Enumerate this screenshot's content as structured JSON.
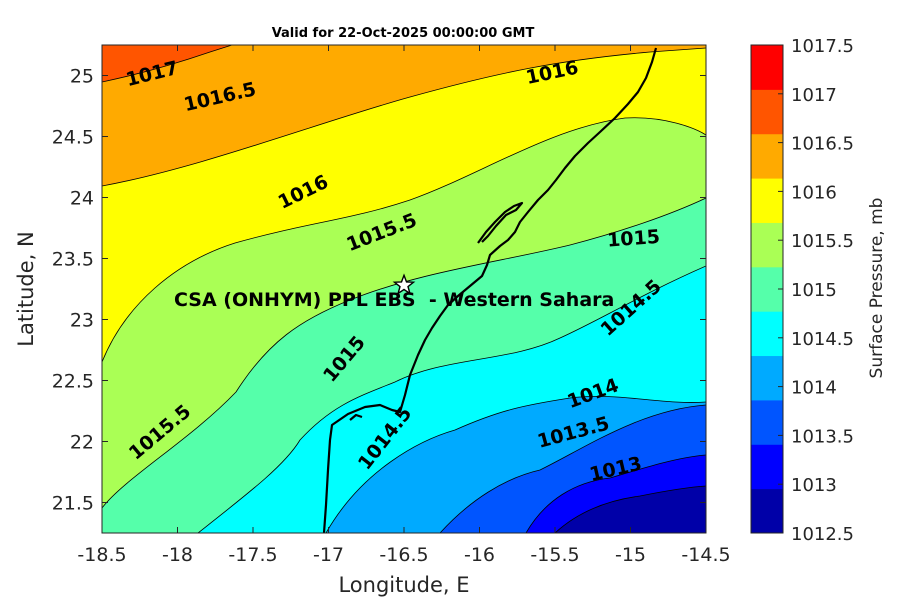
{
  "title": "Valid for 22-Oct-2025 00:00:00 GMT",
  "site_label": "CSA (ONHYM) PPL EBS  - Western Sahara",
  "site_marker": {
    "lon": -16.5,
    "lat": 23.28,
    "icon": "star-icon"
  },
  "colorbar": {
    "title": "Surface Pressure, mb",
    "ticks": [
      "1012.5",
      "1013",
      "1013.5",
      "1014",
      "1014.5",
      "1015",
      "1015.5",
      "1016",
      "1016.5",
      "1017",
      "1017.5"
    ],
    "colors": [
      "#0000a8",
      "#0000ff",
      "#0055ff",
      "#00aaff",
      "#00ffff",
      "#55ffaa",
      "#aaff55",
      "#ffff00",
      "#ffaa00",
      "#ff5500",
      "#ff0000"
    ]
  },
  "chart_data": {
    "type": "contour-map",
    "title": "Valid for 22-Oct-2025 00:00:00 GMT",
    "xlabel": "Longitude, E",
    "ylabel": "Latitude, N",
    "xlim": [
      -18.5,
      -14.5
    ],
    "ylim": [
      21.25,
      25.25
    ],
    "xticks": [
      "-18.5",
      "-18",
      "-17.5",
      "-17",
      "-16.5",
      "-16",
      "-15.5",
      "-15",
      "-14.5"
    ],
    "yticks": [
      "21.5",
      "22",
      "22.5",
      "23",
      "23.5",
      "24",
      "24.5",
      "25"
    ],
    "contour_labels": [
      {
        "text": "1017",
        "lon": -18.17,
        "lat": 25.02,
        "angle": -14
      },
      {
        "text": "1016.5",
        "lon": -17.72,
        "lat": 24.83,
        "angle": -13
      },
      {
        "text": "1016",
        "lon": -15.52,
        "lat": 25.03,
        "angle": -12
      },
      {
        "text": "1016",
        "lon": -17.17,
        "lat": 24.05,
        "angle": -26
      },
      {
        "text": "1015.5",
        "lon": -16.65,
        "lat": 23.72,
        "angle": -21
      },
      {
        "text": "1015",
        "lon": -14.98,
        "lat": 23.67,
        "angle": -4
      },
      {
        "text": "1015.5",
        "lon": -18.12,
        "lat": 22.08,
        "angle": -40
      },
      {
        "text": "1015",
        "lon": -16.9,
        "lat": 22.68,
        "angle": -50
      },
      {
        "text": "1014.5",
        "lon": -16.63,
        "lat": 22.03,
        "angle": -52
      },
      {
        "text": "1014.5",
        "lon": -15.0,
        "lat": 23.1,
        "angle": -42
      },
      {
        "text": "1014",
        "lon": -15.25,
        "lat": 22.4,
        "angle": -20
      },
      {
        "text": "1013.5",
        "lon": -15.38,
        "lat": 22.08,
        "angle": -15
      },
      {
        "text": "1013",
        "lon": -15.1,
        "lat": 21.78,
        "angle": -13
      }
    ]
  }
}
